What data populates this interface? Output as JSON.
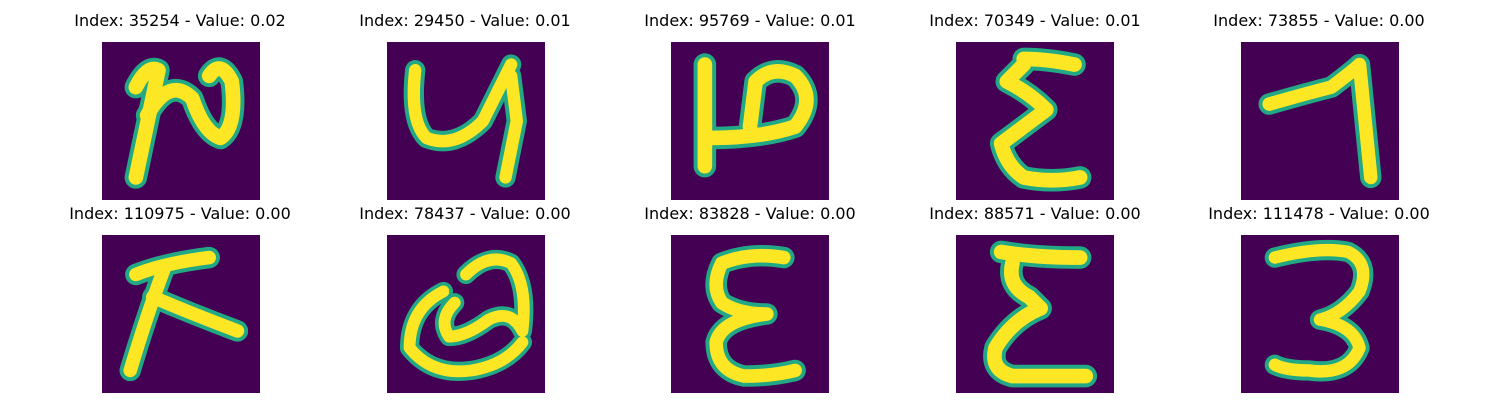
{
  "colors": {
    "background": "#440154",
    "stroke_edge": "#22a884",
    "stroke_core": "#fde725"
  },
  "panels": [
    {
      "title": "Index: 35254 - Value: 0.02",
      "glyph": "handwritten-n-shape"
    },
    {
      "title": "Index: 29450 - Value: 0.01",
      "glyph": "handwritten-y-shape"
    },
    {
      "title": "Index: 95769 - Value: 0.01",
      "glyph": "handwritten-sideways-p-shape"
    },
    {
      "title": "Index: 70349 - Value: 0.01",
      "glyph": "handwritten-sigma-shape"
    },
    {
      "title": "Index: 73855 - Value: 0.00",
      "glyph": "handwritten-seven-shape"
    },
    {
      "title": "Index: 110975 - Value: 0.00",
      "glyph": "handwritten-k-shape"
    },
    {
      "title": "Index: 78437 - Value: 0.00",
      "glyph": "handwritten-a-shape"
    },
    {
      "title": "Index: 83828 - Value: 0.00",
      "glyph": "handwritten-epsilon-shape"
    },
    {
      "title": "Index: 88571 - Value: 0.00",
      "glyph": "handwritten-sigma-shape"
    },
    {
      "title": "Index: 111478 - Value: 0.00",
      "glyph": "handwritten-three-shape"
    }
  ]
}
